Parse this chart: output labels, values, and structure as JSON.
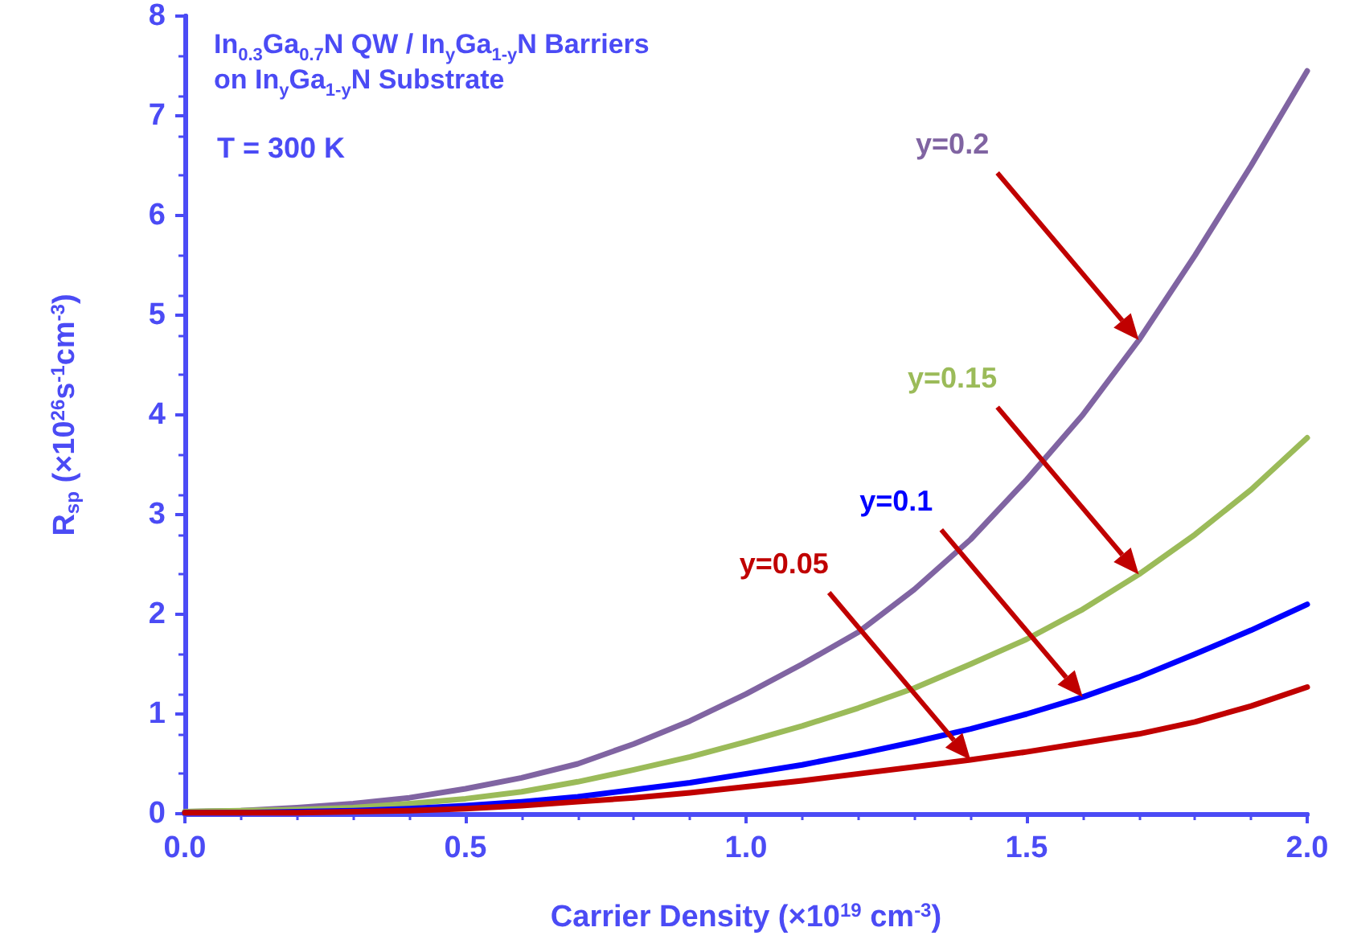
{
  "chart_data": {
    "type": "line",
    "title": "In$_{0.3}$Ga$_{0.7}$N QW / In$_{y}$Ga$_{1-y}$N Barriers",
    "subtitle": "on In$_{y}$Ga$_{1-y}$N Substrate",
    "xlabel": "Carrier Density (×10$^{19}$ cm$^{-3}$)",
    "ylabel": "R$_{sp}$ (×10$^{26}$s$^{-1}$cm$^{-3}$)",
    "x": [
      0,
      0.1,
      0.2,
      0.3,
      0.4,
      0.5,
      0.6,
      0.7,
      0.8,
      0.9,
      1.0,
      1.1,
      1.2,
      1.3,
      1.4,
      1.5,
      1.6,
      1.7,
      1.8,
      1.9,
      2.0
    ],
    "series": [
      {
        "name": "y=0.2",
        "color": "#8064a2",
        "values": [
          0.02,
          0.03,
          0.06,
          0.1,
          0.16,
          0.25,
          0.36,
          0.5,
          0.7,
          0.93,
          1.2,
          1.5,
          1.82,
          2.25,
          2.75,
          3.35,
          4.0,
          4.75,
          5.6,
          6.5,
          7.45
        ]
      },
      {
        "name": "y=0.15",
        "color": "#9bbb59",
        "values": [
          0.02,
          0.03,
          0.04,
          0.06,
          0.1,
          0.15,
          0.22,
          0.32,
          0.44,
          0.57,
          0.72,
          0.88,
          1.06,
          1.26,
          1.5,
          1.75,
          2.05,
          2.4,
          2.8,
          3.25,
          3.77
        ]
      },
      {
        "name": "y=0.1",
        "color": "#0000ff",
        "values": [
          0.01,
          0.01,
          0.02,
          0.03,
          0.05,
          0.08,
          0.12,
          0.17,
          0.24,
          0.31,
          0.4,
          0.49,
          0.6,
          0.72,
          0.85,
          1.0,
          1.17,
          1.37,
          1.6,
          1.84,
          2.1
        ]
      },
      {
        "name": "y=0.05",
        "color": "#c00000",
        "values": [
          0.01,
          0.01,
          0.01,
          0.02,
          0.03,
          0.05,
          0.08,
          0.12,
          0.16,
          0.21,
          0.27,
          0.33,
          0.4,
          0.47,
          0.54,
          0.62,
          0.71,
          0.8,
          0.92,
          1.08,
          1.27
        ]
      }
    ],
    "annotations": [
      "T = 300 K"
    ],
    "xlim": [
      0,
      2.0
    ],
    "xticks": [
      {
        "value": 0,
        "label": "0.0"
      },
      {
        "value": 0.5,
        "label": "0.5"
      },
      {
        "value": 1.0,
        "label": "1.0"
      },
      {
        "value": 1.5,
        "label": "1.5"
      },
      {
        "value": 2.0,
        "label": "2.0"
      }
    ],
    "ylim": [
      0,
      8
    ],
    "yticks": [
      0,
      1,
      2,
      3,
      4,
      5,
      6,
      7,
      8
    ],
    "grid": false,
    "marker": "none",
    "line_style": "solid"
  }
}
